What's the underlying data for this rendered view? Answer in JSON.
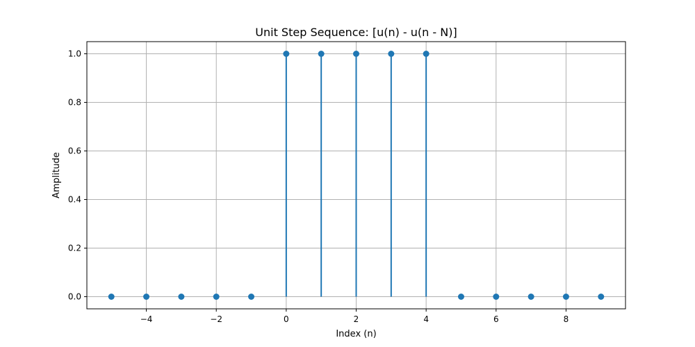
{
  "chart_data": {
    "type": "stem",
    "title": "Unit Step Sequence: [u(n) - u(n - N)]",
    "xlabel": "Index (n)",
    "ylabel": "Amplitude",
    "x": [
      -5,
      -4,
      -3,
      -2,
      -1,
      0,
      1,
      2,
      3,
      4,
      5,
      6,
      7,
      8,
      9
    ],
    "y": [
      0,
      0,
      0,
      0,
      0,
      1,
      1,
      1,
      1,
      1,
      0,
      0,
      0,
      0,
      0
    ],
    "xlim": [
      -5.7,
      9.7
    ],
    "ylim": [
      -0.05,
      1.05
    ],
    "xticks": [
      -4,
      -2,
      0,
      2,
      4,
      6,
      8
    ],
    "xtick_labels": [
      "−4",
      "−2",
      "0",
      "2",
      "4",
      "6",
      "8"
    ],
    "yticks": [
      0.0,
      0.2,
      0.4,
      0.6,
      0.8,
      1.0
    ],
    "ytick_labels": [
      "0.0",
      "0.2",
      "0.4",
      "0.6",
      "0.8",
      "1.0"
    ],
    "grid": true,
    "color": "#1f77b4"
  }
}
